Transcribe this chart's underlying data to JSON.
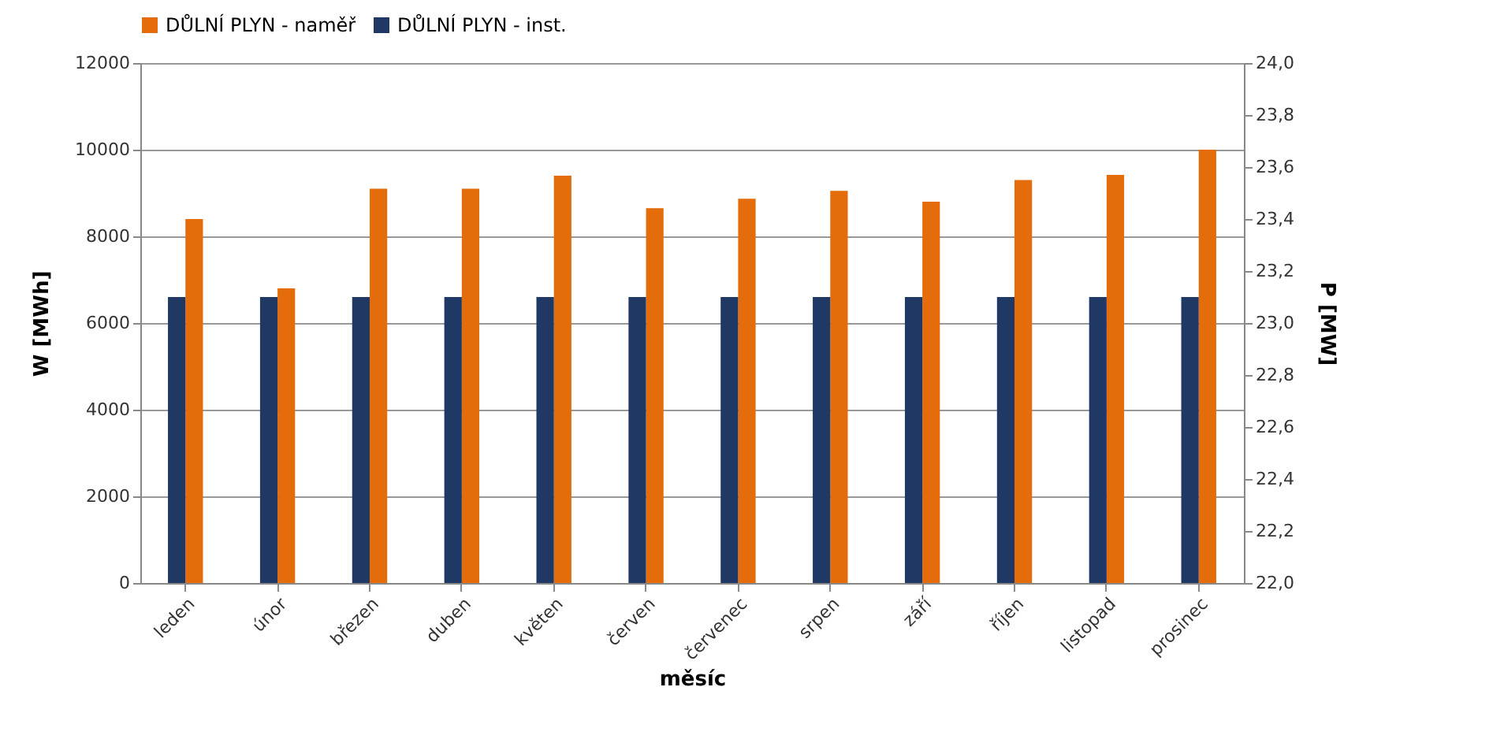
{
  "chart_data": {
    "type": "bar",
    "xlabel": "měsíc",
    "ylabel": "W [MWh]",
    "y2label": "P [MW]",
    "categories": [
      "leden",
      "únor",
      "březen",
      "duben",
      "květen",
      "červen",
      "červenec",
      "srpen",
      "září",
      "říjen",
      "listopad",
      "prosinec"
    ],
    "series": [
      {
        "name": "DŮLNÍ PLYN - naměř",
        "color": "#e46c0a",
        "values": [
          8400,
          6800,
          9100,
          9100,
          9400,
          8650,
          8870,
          9050,
          8800,
          9300,
          9420,
          10000
        ]
      },
      {
        "name": "DŮLNÍ PLYN - inst.",
        "color": "#1f3864",
        "axis": "y2",
        "values": [
          23.1,
          23.1,
          23.1,
          23.1,
          23.1,
          23.1,
          23.1,
          23.1,
          23.1,
          23.1,
          23.1,
          23.1
        ]
      }
    ],
    "ylim": [
      0,
      12000
    ],
    "yticks": [
      0,
      2000,
      4000,
      6000,
      8000,
      10000,
      12000
    ],
    "y2lim": [
      22,
      24
    ],
    "y2ticks": [
      {
        "value": 22,
        "label": "22,0"
      },
      {
        "value": 22.2,
        "label": "22,2"
      },
      {
        "value": 22.4,
        "label": "22,4"
      },
      {
        "value": 22.6,
        "label": "22,6"
      },
      {
        "value": 22.8,
        "label": "22,8"
      },
      {
        "value": 23,
        "label": "23,0"
      },
      {
        "value": 23.2,
        "label": "23,2"
      },
      {
        "value": 23.4,
        "label": "23,4"
      },
      {
        "value": 23.6,
        "label": "23,6"
      },
      {
        "value": 23.8,
        "label": "23,8"
      },
      {
        "value": 24,
        "label": "24,0"
      }
    ],
    "grid": "y",
    "legend": "top"
  }
}
